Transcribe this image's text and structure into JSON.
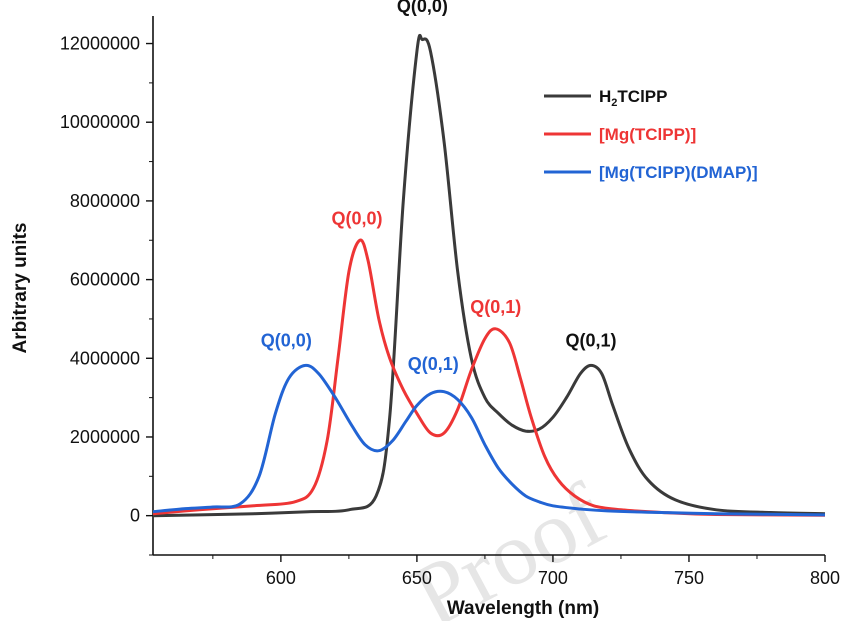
{
  "chart_data": {
    "type": "line",
    "xlabel": "Wavelength (nm)",
    "ylabel": "Arbitrary units",
    "xlim": [
      553,
      800
    ],
    "ylim": [
      -1000000,
      12700000
    ],
    "x_ticks": [
      600,
      650,
      700,
      750,
      800
    ],
    "y_ticks": [
      0,
      2000000,
      4000000,
      6000000,
      8000000,
      10000000,
      12000000
    ],
    "x_tick_labels": [
      "600",
      "650",
      "700",
      "750",
      "800"
    ],
    "y_tick_labels": [
      "0",
      "2000000",
      "4000000",
      "6000000",
      "8000000",
      "10000000",
      "12000000"
    ],
    "legend_position": "top-right",
    "series": [
      {
        "name": "H2TClPP",
        "legend_main": "H",
        "legend_sub": "2",
        "legend_rest": "TClPP",
        "color": "#3a3a3a",
        "x": [
          553,
          570,
          590,
          610,
          625,
          635,
          640,
          645,
          650,
          652,
          655,
          660,
          665,
          670,
          675,
          680,
          685,
          690,
          695,
          700,
          705,
          710,
          714,
          718,
          722,
          728,
          735,
          745,
          760,
          780,
          800
        ],
        "y": [
          0,
          20000,
          50000,
          100000,
          150000,
          500000,
          2500000,
          8000000,
          11800000,
          12100000,
          11800000,
          9500000,
          6200000,
          4000000,
          3000000,
          2600000,
          2300000,
          2150000,
          2200000,
          2500000,
          3000000,
          3600000,
          3820000,
          3600000,
          2800000,
          1700000,
          900000,
          400000,
          150000,
          80000,
          50000
        ]
      },
      {
        "name": "[Mg(TClPP)]",
        "color": "#ee3535",
        "x": [
          553,
          570,
          590,
          605,
          612,
          617,
          621,
          625,
          629,
          632,
          636,
          640,
          645,
          650,
          655,
          660,
          665,
          670,
          675,
          679,
          684,
          688,
          692,
          697,
          702,
          708,
          715,
          725,
          740,
          760,
          800
        ],
        "y": [
          50000,
          150000,
          250000,
          350000,
          700000,
          1900000,
          4000000,
          6200000,
          7000000,
          6500000,
          5000000,
          4000000,
          3200000,
          2600000,
          2100000,
          2100000,
          2700000,
          3700000,
          4500000,
          4750000,
          4400000,
          3500000,
          2500000,
          1500000,
          900000,
          500000,
          250000,
          150000,
          80000,
          30000,
          10000
        ]
      },
      {
        "name": "[Mg(TClPP)(DMAP)]",
        "color": "#2264d4",
        "x": [
          553,
          565,
          575,
          585,
          592,
          598,
          603,
          609,
          614,
          620,
          626,
          631,
          636,
          641,
          646,
          650,
          655,
          660,
          665,
          670,
          675,
          680,
          685,
          690,
          695,
          700,
          710,
          720,
          740,
          760,
          800
        ],
        "y": [
          100000,
          180000,
          220000,
          300000,
          1000000,
          2600000,
          3500000,
          3820000,
          3600000,
          3000000,
          2300000,
          1800000,
          1650000,
          1900000,
          2400000,
          2800000,
          3100000,
          3150000,
          2950000,
          2500000,
          1800000,
          1200000,
          800000,
          500000,
          350000,
          250000,
          170000,
          120000,
          80000,
          50000,
          20000
        ]
      }
    ],
    "annotations": [
      {
        "text": "Q(0,0)",
        "color": "#111111",
        "x": 652,
        "y": 12800000
      },
      {
        "text": "Q(0,1)",
        "color": "#111111",
        "x": 714,
        "y": 4300000
      },
      {
        "text": "Q(0,0)",
        "color": "#ee3535",
        "x": 628,
        "y": 7400000
      },
      {
        "text": "Q(0,1)",
        "color": "#ee3535",
        "x": 679,
        "y": 5150000
      },
      {
        "text": "Q(0,0)",
        "color": "#2264d4",
        "x": 602,
        "y": 4300000
      },
      {
        "text": "Q(0,1)",
        "color": "#2264d4",
        "x": 656,
        "y": 3700000
      }
    ]
  },
  "watermark_text": "Proof"
}
